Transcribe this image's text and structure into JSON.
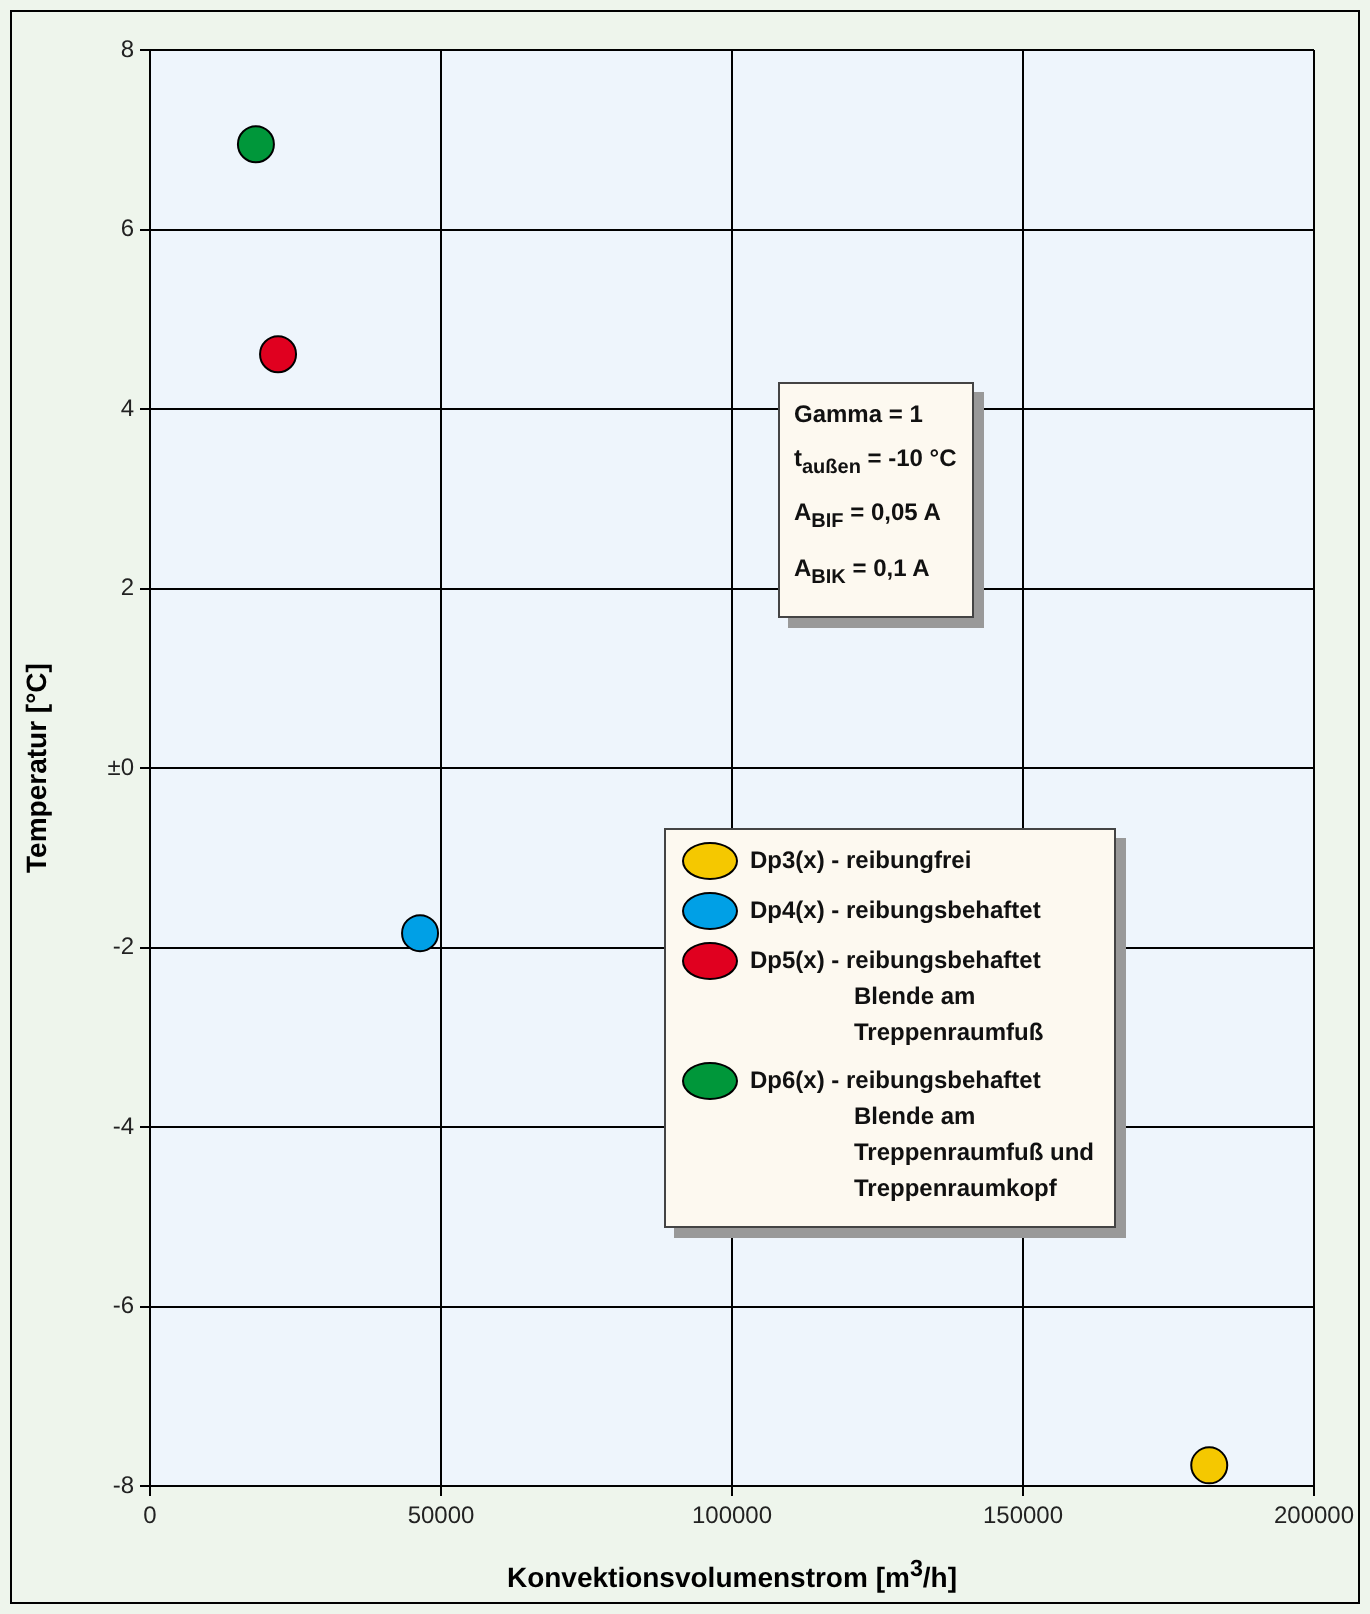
{
  "chart_data": {
    "type": "scatter",
    "xlabel": "Konvektionsvolumenstrom [m$^{3}$/h]",
    "ylabel": "Temperatur [°C]",
    "xlim": [
      0,
      200000
    ],
    "xticks": [
      0,
      50000,
      100000,
      150000,
      200000
    ],
    "ylim": [
      -8,
      8
    ],
    "yticks": [
      -8,
      -6,
      -4,
      -2,
      {
        "value": 0,
        "label": "±0"
      },
      2,
      4,
      6,
      8
    ],
    "grid": true,
    "marker": "circle",
    "legend": "right",
    "series": [
      {
        "name": "Dp3(x) - reibungfrei",
        "color": "#f5c800",
        "x": [
          182000
        ],
        "values": [
          -7.77
        ]
      },
      {
        "name": "Dp4(x) - reibungsbehaftet",
        "color": "#00a0e6",
        "x": [
          46400
        ],
        "values": [
          -1.84
        ]
      },
      {
        "name": "Dp5(x) - reibungsbehaftet Blende am Treppenraumfuß",
        "color": "#e0001f",
        "x": [
          22000
        ],
        "values": [
          4.61
        ]
      },
      {
        "name": "Dp6(x) - reibungsbehaftet Blende am Treppenraumfuß und Treppenraumkopf",
        "color": "#00973a",
        "x": [
          18200
        ],
        "values": [
          6.95
        ]
      }
    ],
    "annotations": [
      "Gamma = 1",
      "t$_{außen}$ = -10 °C",
      "A$_{BIF}$ = 0,05 A",
      "A$_{BIK}$ = 0,1 A"
    ]
  }
}
